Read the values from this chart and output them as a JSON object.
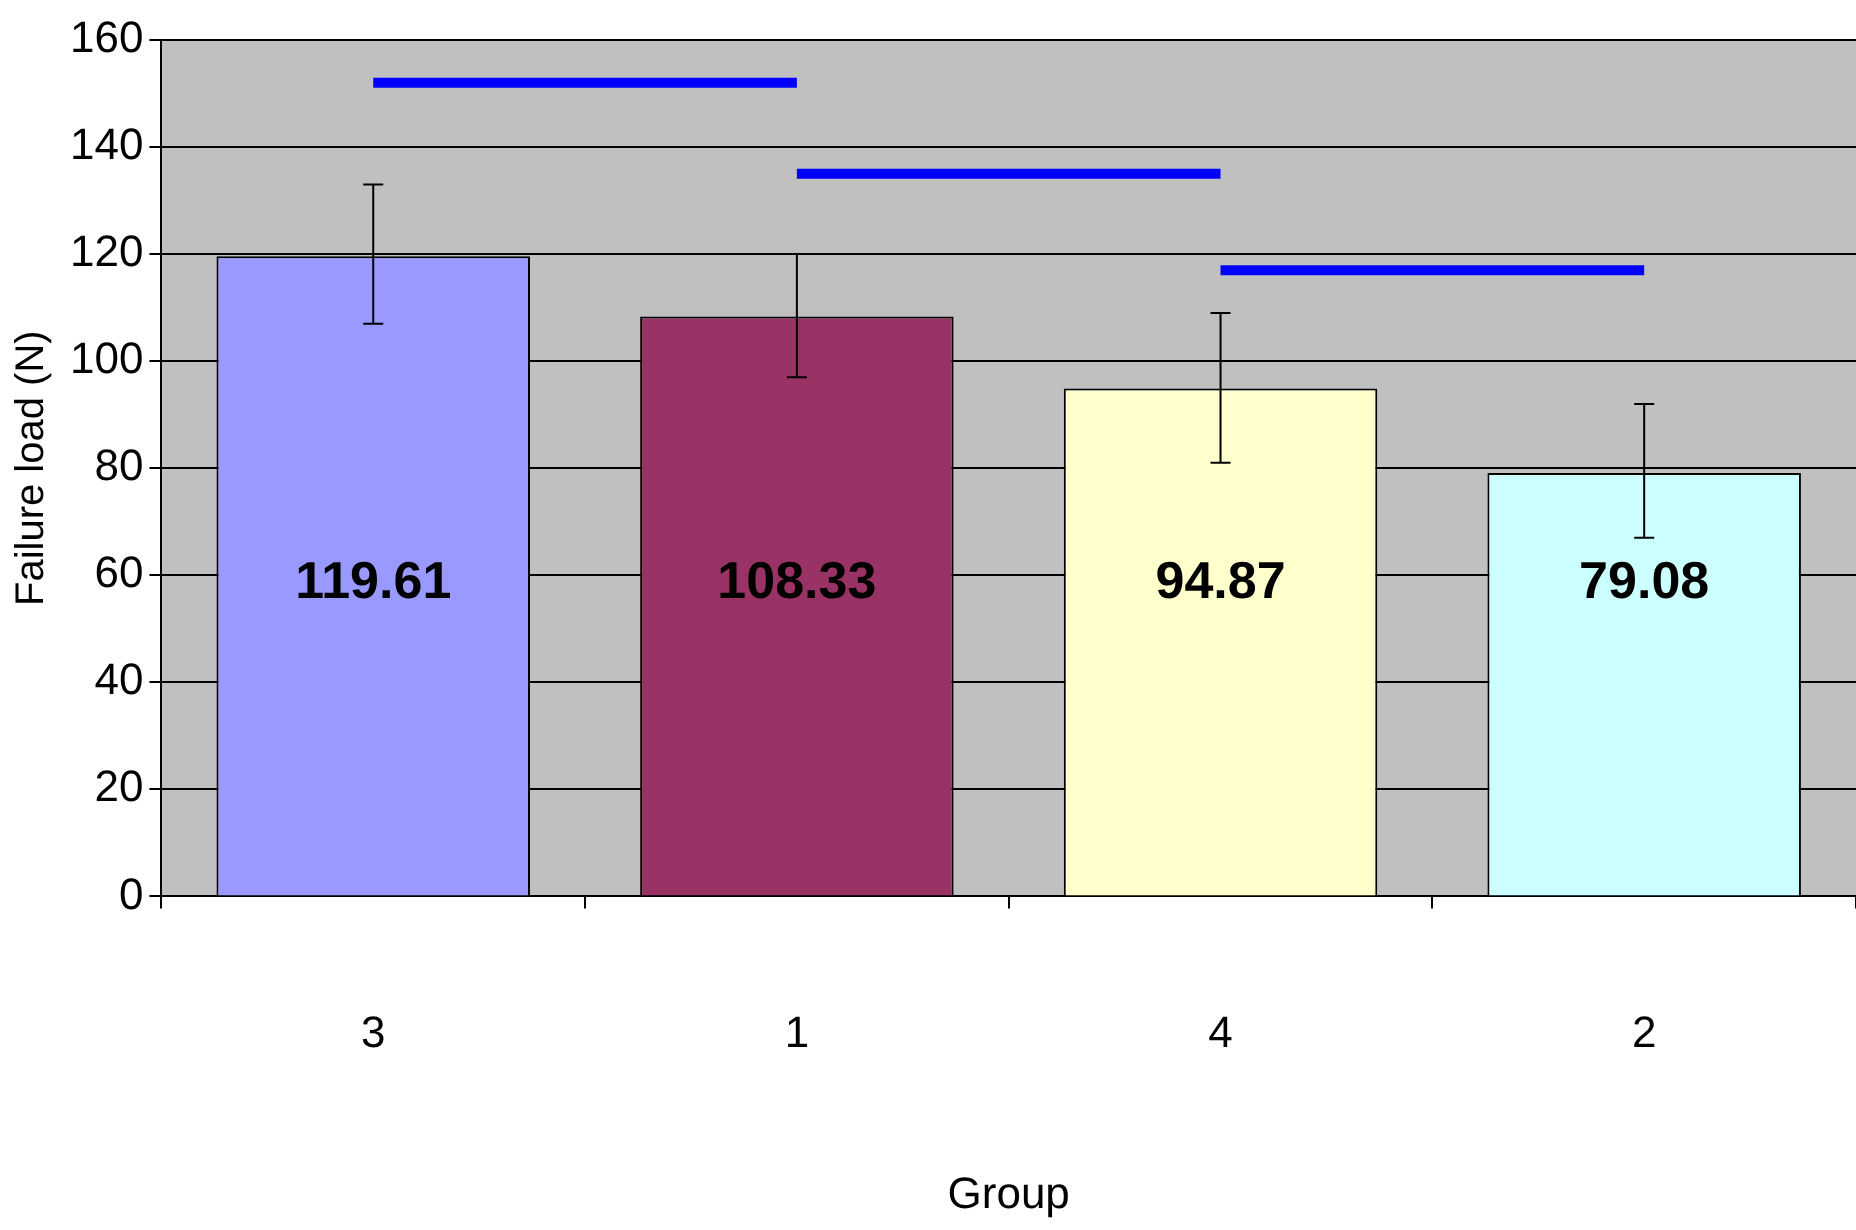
{
  "chart_data": {
    "type": "bar",
    "xlabel": "Group",
    "ylabel": "Failure load (N)",
    "categories": [
      "3",
      "1",
      "4",
      "2"
    ],
    "values": [
      119.61,
      108.33,
      94.87,
      79.08
    ],
    "colors": [
      "#9999ff",
      "#993366",
      "#ffffcc",
      "#ccffff"
    ],
    "errors": [
      [
        107,
        133
      ],
      [
        97,
        120
      ],
      [
        81,
        109
      ],
      [
        67,
        92
      ]
    ],
    "value_labels": [
      "119.61",
      "108.33",
      "94.87",
      "79.08"
    ],
    "series": [
      {
        "type": "line",
        "x": [
          "3",
          "1"
        ],
        "values": [
          152,
          152
        ],
        "color": "#0000ff"
      },
      {
        "type": "line",
        "x": [
          "1",
          "4"
        ],
        "values": [
          135,
          135
        ],
        "color": "#0000ff"
      },
      {
        "type": "line",
        "x": [
          "4",
          "2"
        ],
        "values": [
          117,
          117
        ],
        "color": "#0000ff"
      }
    ],
    "ylim": [
      0,
      160
    ],
    "yticks": [
      0,
      20,
      40,
      60,
      80,
      100,
      120,
      140,
      160
    ],
    "grid": "y",
    "legend": false
  }
}
